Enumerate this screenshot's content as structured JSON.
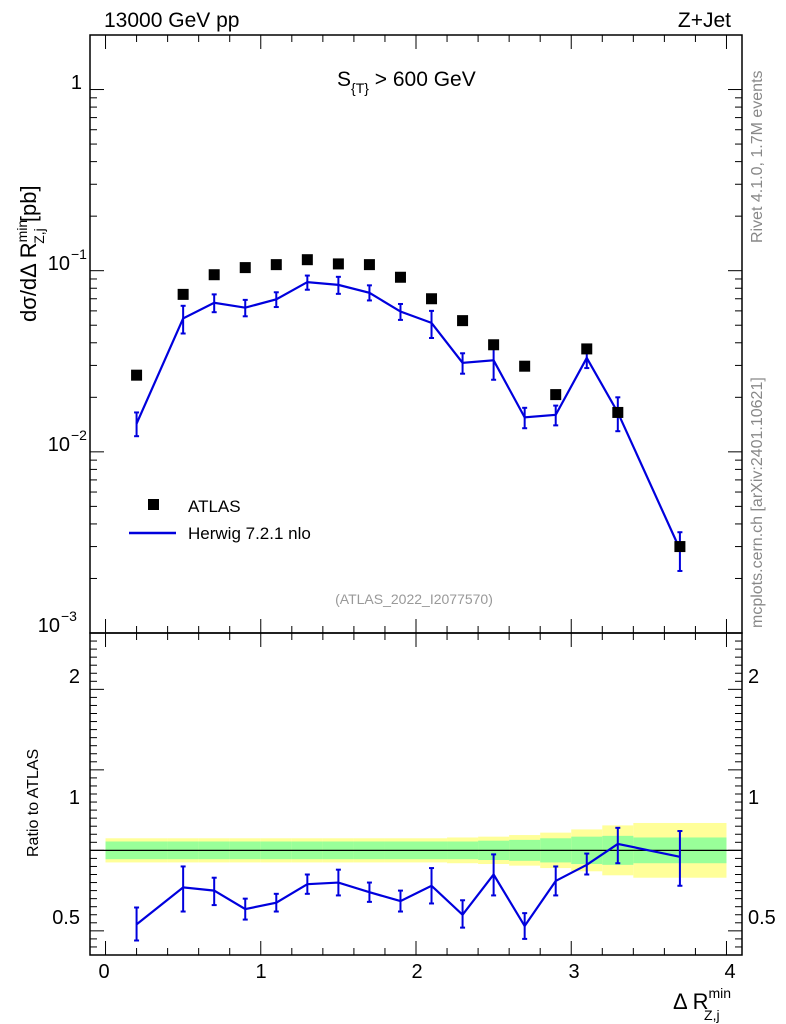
{
  "header": {
    "left": "13000 GeV pp",
    "right": "Z+Jet"
  },
  "side_labels": {
    "rivet": "Rivet 4.1.0,  1.7M events",
    "mcplots": "mcplots.cern.ch [arXiv:2401.10621]"
  },
  "colors": {
    "data": "#000000",
    "mc": "#0000dd",
    "band_inner": "#99ff99",
    "band_outer": "#ffff99",
    "watermark": "#999999",
    "side_text": "#888888"
  },
  "chart_data": [
    {
      "type": "scatter",
      "title": "S_{T} > 600 GeV",
      "title_main": "S",
      "title_sub": "{T}",
      "title_rest": " > 600 GeV",
      "ylabel": "dσ/dΔ R^min_Z,j [pb]",
      "yscale": "log",
      "ylim": [
        0.001,
        2.0
      ],
      "xlim": [
        -0.1,
        4.1
      ],
      "y_ticks": [
        {
          "value": 1,
          "label": "1"
        },
        {
          "value": 0.1,
          "label_base": "10",
          "label_exp": "−1"
        },
        {
          "value": 0.01,
          "label_base": "10",
          "label_exp": "−2"
        },
        {
          "value": 0.001,
          "label_base": "10",
          "label_exp": "−3"
        }
      ],
      "watermark": "(ATLAS_2022_I2077570)",
      "legend": {
        "position": "center-left",
        "entries": [
          {
            "name": "ATLAS",
            "style": "square-marker"
          },
          {
            "name": "Herwig 7.2.1 nlo",
            "style": "line"
          }
        ]
      },
      "series": [
        {
          "name": "ATLAS",
          "x": [
            0.2,
            0.5,
            0.7,
            0.9,
            1.1,
            1.3,
            1.5,
            1.7,
            1.9,
            2.1,
            2.3,
            2.5,
            2.7,
            2.9,
            3.1,
            3.3,
            3.7
          ],
          "values": [
            0.0265,
            0.074,
            0.095,
            0.104,
            0.108,
            0.115,
            0.109,
            0.108,
            0.092,
            0.07,
            0.053,
            0.039,
            0.0297,
            0.0207,
            0.037,
            0.0165,
            0.003
          ]
        },
        {
          "name": "Herwig 7.2.1 nlo",
          "x": [
            0.2,
            0.5,
            0.7,
            0.9,
            1.1,
            1.3,
            1.5,
            1.7,
            1.9,
            2.1,
            2.3,
            2.5,
            2.7,
            2.9,
            3.1,
            3.3,
            3.7
          ],
          "values": [
            0.0143,
            0.0545,
            0.0665,
            0.0625,
            0.0695,
            0.0865,
            0.0835,
            0.0755,
            0.0595,
            0.0515,
            0.031,
            0.032,
            0.0155,
            0.016,
            0.033,
            0.0165,
            0.0029
          ],
          "err_low": [
            0.0122,
            0.045,
            0.059,
            0.056,
            0.063,
            0.0785,
            0.0745,
            0.0685,
            0.0535,
            0.0425,
            0.027,
            0.025,
            0.0135,
            0.014,
            0.029,
            0.013,
            0.0022
          ],
          "err_high": [
            0.0165,
            0.064,
            0.074,
            0.069,
            0.076,
            0.094,
            0.0925,
            0.083,
            0.0655,
            0.06,
            0.035,
            0.039,
            0.0175,
            0.018,
            0.037,
            0.02,
            0.0036
          ]
        }
      ]
    },
    {
      "type": "line",
      "ylabel": "Ratio to ATLAS",
      "xlabel": "Δ R^min_Z,j",
      "xlabel_main": "Δ R",
      "xlabel_sup": "min",
      "xlabel_sub": "Z,j",
      "ylim": [
        0.35,
        2.35
      ],
      "xlim": [
        -0.1,
        4.1
      ],
      "y_ticks": [
        {
          "value": 0.5,
          "label": "0.5"
        },
        {
          "value": 1,
          "label": "1"
        },
        {
          "value": 2,
          "label": "2"
        }
      ],
      "x_ticks": [
        {
          "value": 0,
          "label": "0"
        },
        {
          "value": 1,
          "label": "1"
        },
        {
          "value": 2,
          "label": "2"
        },
        {
          "value": 3,
          "label": "3"
        },
        {
          "value": 4,
          "label": "4"
        }
      ],
      "bands": {
        "edges": [
          0.0,
          0.4,
          0.6,
          0.8,
          1.0,
          1.2,
          1.4,
          1.6,
          1.8,
          2.0,
          2.2,
          2.4,
          2.6,
          2.8,
          3.0,
          3.2,
          3.4,
          4.0
        ],
        "inner_low": [
          0.945,
          0.945,
          0.945,
          0.945,
          0.945,
          0.945,
          0.945,
          0.945,
          0.945,
          0.945,
          0.945,
          0.94,
          0.935,
          0.925,
          0.915,
          0.91,
          0.92
        ],
        "inner_high": [
          1.055,
          1.055,
          1.055,
          1.055,
          1.055,
          1.055,
          1.055,
          1.055,
          1.055,
          1.055,
          1.055,
          1.06,
          1.065,
          1.075,
          1.085,
          1.09,
          1.08
        ],
        "outer_low": [
          0.925,
          0.925,
          0.925,
          0.925,
          0.925,
          0.925,
          0.925,
          0.925,
          0.925,
          0.925,
          0.92,
          0.915,
          0.905,
          0.89,
          0.87,
          0.845,
          0.83
        ],
        "outer_high": [
          1.075,
          1.075,
          1.075,
          1.075,
          1.075,
          1.075,
          1.075,
          1.075,
          1.075,
          1.075,
          1.08,
          1.085,
          1.095,
          1.11,
          1.13,
          1.155,
          1.17
        ]
      },
      "series": [
        {
          "name": "Herwig 7.2.1 nlo / ATLAS",
          "x": [
            0.2,
            0.5,
            0.7,
            0.9,
            1.1,
            1.3,
            1.5,
            1.7,
            1.9,
            2.1,
            2.3,
            2.5,
            2.7,
            2.9,
            3.1,
            3.3,
            3.7
          ],
          "values": [
            0.54,
            0.77,
            0.75,
            0.635,
            0.675,
            0.79,
            0.8,
            0.74,
            0.685,
            0.78,
            0.6,
            0.85,
            0.53,
            0.81,
            0.91,
            1.04,
            0.96
          ],
          "err_low": [
            0.44,
            0.62,
            0.66,
            0.57,
            0.62,
            0.73,
            0.72,
            0.68,
            0.62,
            0.67,
            0.52,
            0.72,
            0.45,
            0.72,
            0.85,
            0.92,
            0.78
          ],
          "err_high": [
            0.645,
            0.9,
            0.83,
            0.7,
            0.73,
            0.85,
            0.88,
            0.8,
            0.75,
            0.89,
            0.69,
            0.975,
            0.61,
            0.9,
            0.98,
            1.14,
            1.12
          ]
        }
      ]
    }
  ]
}
